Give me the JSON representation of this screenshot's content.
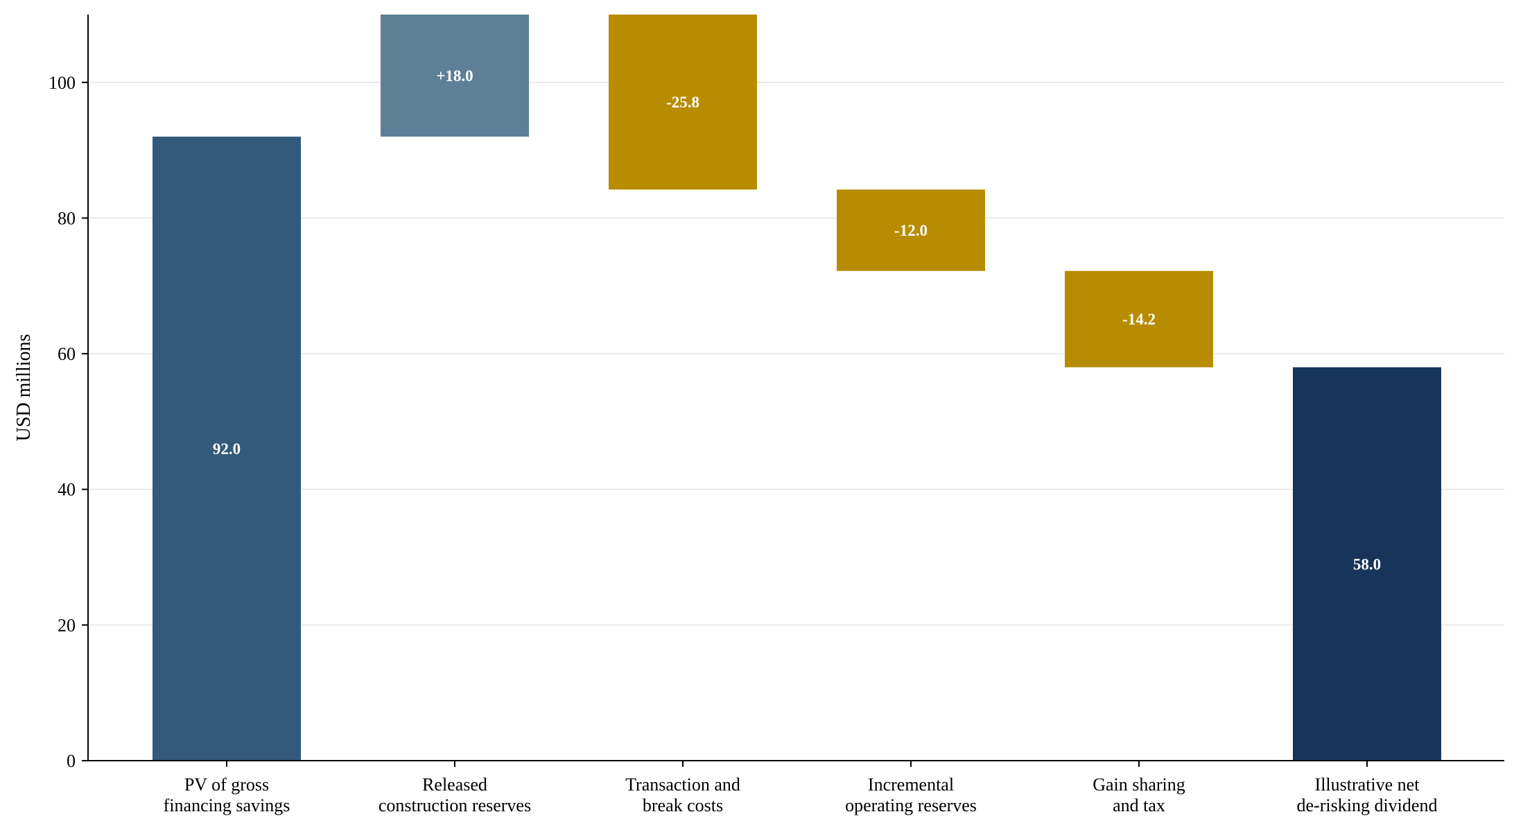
{
  "chart_data": {
    "type": "bar",
    "subtype": "waterfall",
    "title": "",
    "xlabel": "",
    "ylabel": "USD millions",
    "ylim": [
      0,
      110
    ],
    "yticks": [
      0,
      20,
      40,
      60,
      80,
      100
    ],
    "grid": "horizontal",
    "legend": "none",
    "categories": [
      [
        "PV of gross",
        "financing savings"
      ],
      [
        "Released",
        "construction reserves"
      ],
      [
        "Transaction and",
        "break costs"
      ],
      [
        "Incremental",
        "operating reserves"
      ],
      [
        "Gain sharing",
        "and tax"
      ],
      [
        "Illustrative net",
        "de-risking dividend"
      ]
    ],
    "steps": [
      {
        "kind": "total",
        "value": 92.0,
        "start": 0,
        "end": 92.0,
        "label": "92.0",
        "color": "#335a7a"
      },
      {
        "kind": "increase",
        "value": 18.0,
        "start": 92.0,
        "end": 110.0,
        "label": "+18.0",
        "color": "#5f7f96"
      },
      {
        "kind": "decrease",
        "value": -25.8,
        "start": 110.0,
        "end": 84.2,
        "label": "-25.8",
        "color": "#b88c00"
      },
      {
        "kind": "decrease",
        "value": -12.0,
        "start": 84.2,
        "end": 72.2,
        "label": "-12.0",
        "color": "#b88c00"
      },
      {
        "kind": "decrease",
        "value": -14.2,
        "start": 72.2,
        "end": 58.0,
        "label": "-14.2",
        "color": "#b88c00"
      },
      {
        "kind": "total",
        "value": 58.0,
        "start": 0,
        "end": 58.0,
        "label": "58.0",
        "color": "#18345a"
      }
    ],
    "colors": {
      "grid": "#e6e6e6",
      "axis": "#000000",
      "label_text": "#ffffff"
    }
  }
}
